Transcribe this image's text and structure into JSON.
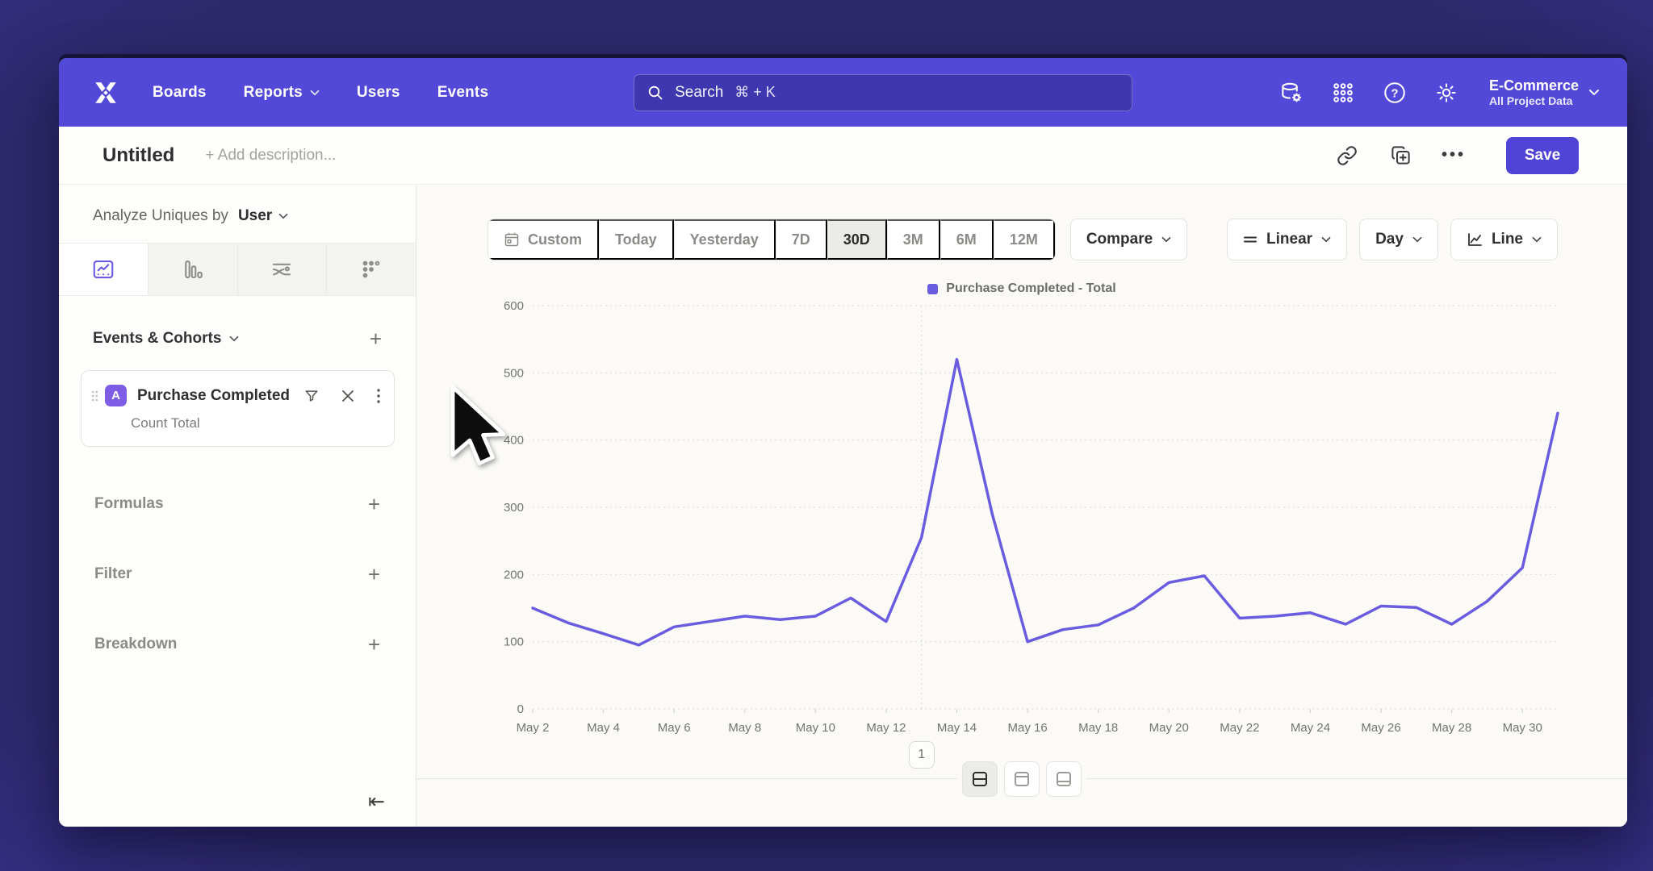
{
  "navbar": {
    "items": [
      {
        "label": "Boards",
        "has_chevron": false
      },
      {
        "label": "Reports",
        "has_chevron": true
      },
      {
        "label": "Users",
        "has_chevron": false
      },
      {
        "label": "Events",
        "has_chevron": false
      }
    ],
    "search": {
      "placeholder": "Search",
      "shortcut": "⌘ + K"
    },
    "icons": [
      "data-management-icon",
      "apps-grid-icon",
      "help-icon",
      "settings-icon"
    ],
    "project": {
      "name": "E-Commerce",
      "scope": "All Project Data"
    }
  },
  "toolbar": {
    "title": "Untitled",
    "description_placeholder": "+ Add description...",
    "more_label": "•••",
    "save_label": "Save"
  },
  "sidebar": {
    "analyze_prefix": "Analyze Uniques by",
    "analyze_value": "User",
    "tabs": [
      {
        "icon": "insights-chart-icon",
        "selected": true
      },
      {
        "icon": "bar-chart-icon",
        "selected": false
      },
      {
        "icon": "flows-icon",
        "selected": false
      },
      {
        "icon": "retention-dots-icon",
        "selected": false
      }
    ],
    "events_header": "Events & Cohorts",
    "event_card": {
      "badge": "A",
      "name": "Purchase Completed",
      "subtitle": "Count Total"
    },
    "rows": [
      {
        "label": "Formulas"
      },
      {
        "label": "Filter"
      },
      {
        "label": "Breakdown"
      }
    ]
  },
  "controls": {
    "ranges": [
      {
        "label": "Custom",
        "icon": "calendar-icon",
        "selected": false
      },
      {
        "label": "Today",
        "selected": false
      },
      {
        "label": "Yesterday",
        "selected": false
      },
      {
        "label": "7D",
        "selected": false
      },
      {
        "label": "30D",
        "selected": true
      },
      {
        "label": "3M",
        "selected": false
      },
      {
        "label": "6M",
        "selected": false
      },
      {
        "label": "12M",
        "selected": false
      }
    ],
    "compare_label": "Compare",
    "scale_label": "Linear",
    "interval_label": "Day",
    "chart_type_label": "Line"
  },
  "chart_data": {
    "type": "line",
    "title": "",
    "legend": [
      "Purchase Completed - Total"
    ],
    "x": [
      "May 2",
      "May 3",
      "May 4",
      "May 5",
      "May 6",
      "May 7",
      "May 8",
      "May 9",
      "May 10",
      "May 11",
      "May 12",
      "May 13",
      "May 14",
      "May 15",
      "May 16",
      "May 17",
      "May 18",
      "May 19",
      "May 20",
      "May 21",
      "May 22",
      "May 23",
      "May 24",
      "May 25",
      "May 26",
      "May 27",
      "May 28",
      "May 29",
      "May 30",
      "May 31"
    ],
    "series": [
      {
        "name": "Purchase Completed - Total",
        "values": [
          150,
          128,
          112,
          95,
          122,
          130,
          138,
          133,
          138,
          165,
          130,
          255,
          520,
          290,
          100,
          118,
          125,
          150,
          188,
          198,
          135,
          138,
          143,
          126,
          153,
          151,
          126,
          160,
          210,
          440
        ]
      }
    ],
    "ylim": [
      0,
      600
    ],
    "yticks": [
      0,
      100,
      200,
      300,
      400,
      500,
      600
    ],
    "x_tick_step": 2,
    "grid": "dotted-horizontal",
    "legend_position": "top-center",
    "annotations": [
      {
        "label": "1",
        "x": "May 13"
      }
    ],
    "line_color": "#6a5ce0"
  },
  "bottom": {
    "layout_buttons": [
      "layout-split-button",
      "layout-top-button",
      "layout-bottom-button"
    ],
    "annotation_badge": "1"
  },
  "colors": {
    "navbar": "#5349d8",
    "accent": "#4f44d6",
    "line": "#6a5ce0",
    "selected_tab_icon": "#6a5ce0",
    "main_bg": "#fbfaf6"
  }
}
